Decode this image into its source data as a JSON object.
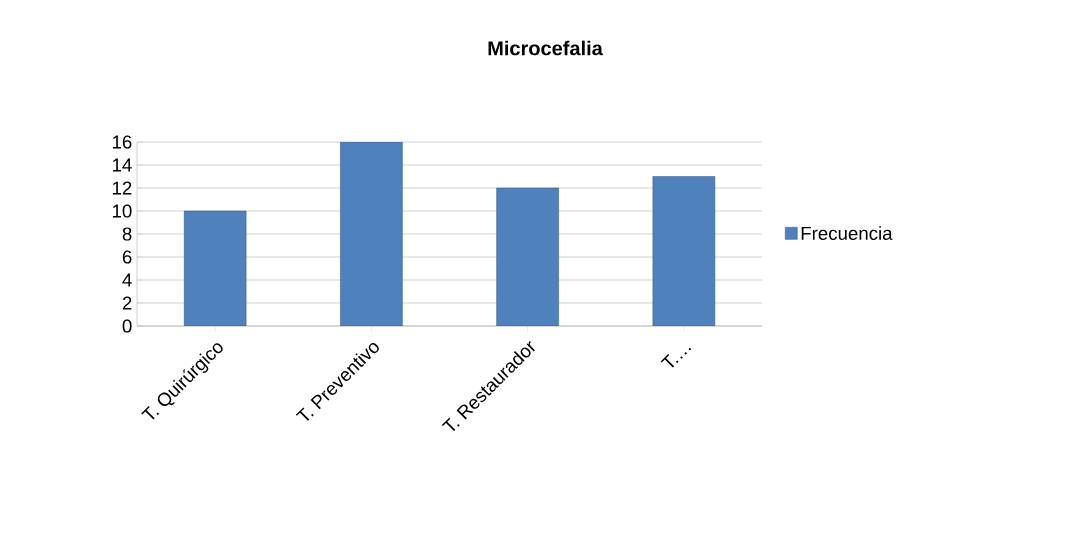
{
  "chart_data": {
    "type": "bar",
    "title": "Microcefalia",
    "categories": [
      "T. Quirúrgico",
      "T. Preventivo",
      "T. Restaurador",
      "T.…"
    ],
    "series": [
      {
        "name": "Frecuencia",
        "color": "#4f81bd",
        "values": [
          10,
          16,
          12,
          13
        ]
      }
    ],
    "ylim": [
      0,
      16
    ],
    "yticks": [
      0,
      2,
      4,
      6,
      8,
      10,
      12,
      14,
      16
    ],
    "grid": "y",
    "legend": "right"
  }
}
